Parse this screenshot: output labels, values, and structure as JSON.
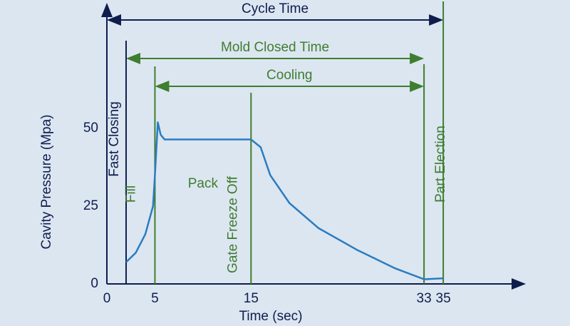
{
  "chart_data": {
    "type": "line",
    "xlabel": "Time (sec)",
    "ylabel": "Cavity Pressure (Mpa)",
    "x": [
      2,
      3,
      4,
      4.8,
      5,
      5.3,
      5.6,
      6,
      10,
      15,
      16,
      17,
      19,
      22,
      26,
      30,
      33,
      35
    ],
    "series": [
      {
        "color": "#2b7cc0",
        "values": [
          7,
          10,
          16,
          25,
          35,
          52,
          48,
          46.5,
          46.5,
          46.5,
          44,
          35,
          26,
          18,
          11,
          5,
          1.5,
          1.8
        ]
      }
    ],
    "xlim": [
      0,
      43
    ],
    "ylim": [
      0,
      90
    ],
    "xticks": [
      0,
      5,
      15,
      33,
      35
    ],
    "yticks": [
      0,
      25,
      50
    ],
    "grid": false,
    "spans": [
      {
        "label": "Cycle Time",
        "start": 0,
        "end": 35,
        "color": "#0f1d4d"
      },
      {
        "label": "Mold Closed Time",
        "start": 2,
        "end": 33,
        "color": "#3f7d2f"
      },
      {
        "label": "Cooling",
        "start": 5,
        "end": 33,
        "color": "#3f7d2f"
      }
    ],
    "markers": [
      {
        "label": "Fast Closing",
        "x": 2,
        "color": "#0f1d4d"
      },
      {
        "label": "Fill",
        "x": 5,
        "color": "#3f7d2f"
      },
      {
        "label": "Gate Freeze Off",
        "x": 15,
        "color": "#3f7d2f"
      },
      {
        "label": "Part Election",
        "x": 33,
        "color": "#3f7d2f"
      }
    ],
    "annotations": [
      {
        "text": "Pack",
        "color": "#3f7d2f"
      }
    ]
  }
}
